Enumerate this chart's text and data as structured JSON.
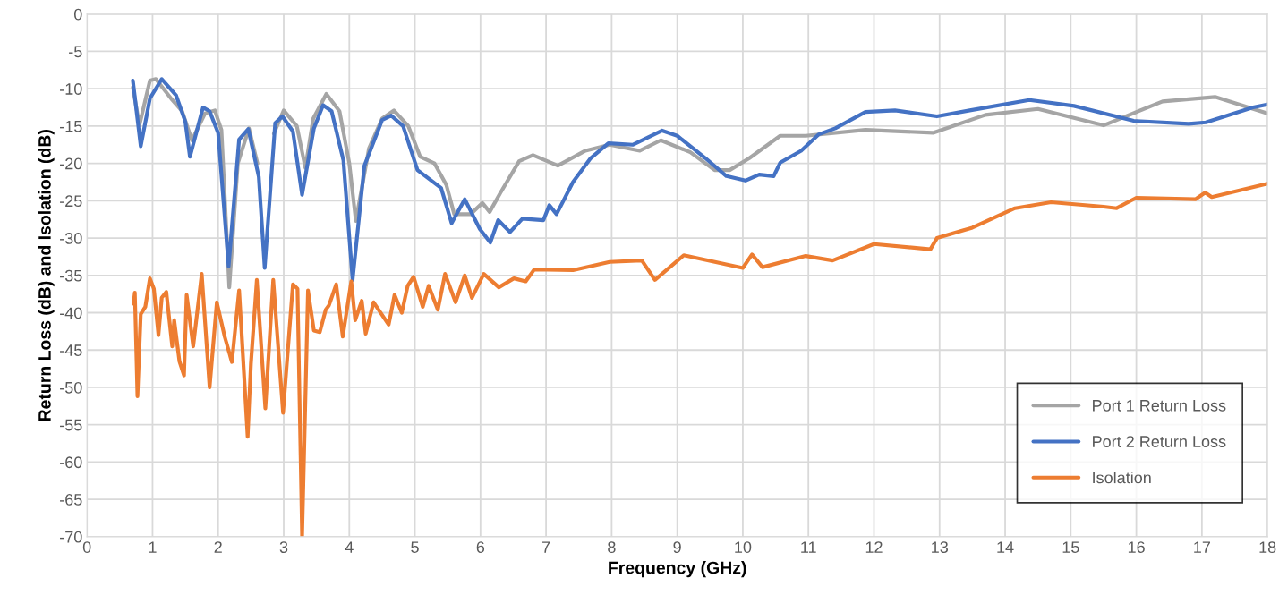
{
  "chart_data": {
    "type": "line",
    "xlabel": "Frequency (GHz)",
    "ylabel": "Return Loss (dB) and Isolation (dB)",
    "xlim": [
      0,
      18
    ],
    "xticks": [
      0,
      1,
      2,
      3,
      4,
      5,
      6,
      7,
      8,
      9,
      10,
      11,
      12,
      13,
      14,
      15,
      16,
      17,
      18
    ],
    "ylim": [
      -70,
      0
    ],
    "yticks": [
      -70,
      -65,
      -60,
      -55,
      -50,
      -45,
      -40,
      -35,
      -30,
      -25,
      -20,
      -15,
      -10,
      -5,
      0
    ],
    "grid": true,
    "legend": "bottom right",
    "line_style": "solid",
    "marker": "none",
    "series": [
      {
        "name": "Port 1 Return Loss",
        "color": "#a5a5a5",
        "x": [
          0.7,
          0.8,
          0.96,
          1.05,
          1.3,
          1.45,
          1.6,
          1.8,
          1.95,
          2.05,
          2.17,
          2.3,
          2.47,
          2.6,
          2.71,
          2.85,
          3.0,
          3.2,
          3.33,
          3.45,
          3.65,
          3.85,
          4.0,
          4.1,
          4.3,
          4.5,
          4.68,
          4.9,
          5.08,
          5.3,
          5.48,
          5.6,
          5.85,
          6.03,
          6.14,
          6.3,
          6.59,
          6.8,
          7.18,
          7.6,
          7.97,
          8.43,
          8.75,
          9.2,
          9.57,
          9.8,
          10.1,
          10.57,
          10.96,
          11.87,
          12.9,
          13.7,
          14.5,
          15.5,
          16.4,
          17.2,
          18.0
        ],
        "values": [
          -9.8,
          -14.9,
          -8.9,
          -8.7,
          -11.5,
          -13,
          -16.9,
          -13.3,
          -12.9,
          -15.5,
          -36.6,
          -20,
          -15.3,
          -20,
          null,
          -16,
          -12.9,
          -15,
          -20.6,
          -14,
          -10.7,
          -13,
          -20,
          -27.7,
          -18,
          -14,
          -12.9,
          -15,
          -19.1,
          -20,
          -22.9,
          -26.8,
          -26.8,
          -25.3,
          -26.5,
          -24,
          -19.7,
          -18.9,
          -20.3,
          -18.3,
          -17.5,
          -18.3,
          -16.9,
          -18.5,
          -20.9,
          -20.9,
          -19.3,
          -16.3,
          -16.3,
          -15.5,
          -15.9,
          -13.5,
          -12.7,
          -14.9,
          -11.7,
          -11.1,
          -13.3
        ]
      },
      {
        "name": "Port 2 Return Loss",
        "color": "#4472c4",
        "x": [
          0.7,
          0.82,
          0.96,
          1.14,
          1.36,
          1.5,
          1.57,
          1.77,
          1.87,
          2.0,
          2.16,
          2.32,
          2.46,
          2.62,
          2.71,
          2.87,
          2.98,
          3.14,
          3.28,
          3.46,
          3.6,
          3.73,
          3.91,
          4.05,
          4.23,
          4.5,
          4.64,
          4.82,
          5.04,
          5.4,
          5.56,
          5.76,
          5.99,
          6.15,
          6.27,
          6.45,
          6.64,
          6.96,
          7.05,
          7.16,
          7.41,
          7.68,
          7.95,
          8.32,
          8.77,
          9.0,
          9.2,
          9.43,
          9.75,
          10.04,
          10.25,
          10.47,
          10.57,
          10.89,
          11.16,
          11.41,
          11.87,
          12.32,
          12.96,
          13.46,
          14.37,
          15.05,
          15.96,
          16.8,
          17.06,
          17.78,
          18.0
        ],
        "values": [
          -8.9,
          -17.7,
          -11.3,
          -8.7,
          -10.9,
          -14.4,
          -19.1,
          -12.5,
          -13,
          -15.9,
          -33.8,
          -16.8,
          -15.4,
          -21.8,
          -34,
          -14.6,
          -13.7,
          -15.7,
          -24.2,
          -15.3,
          -12.2,
          -13,
          -19.6,
          -35.6,
          -20.3,
          -14.2,
          -13.6,
          -15,
          -20.9,
          -23.3,
          -28,
          -24.8,
          -28.8,
          -30.6,
          -27.6,
          -29.2,
          -27.4,
          -27.6,
          -25.6,
          -26.8,
          -22.5,
          -19.3,
          -17.3,
          -17.5,
          -15.6,
          -16.3,
          -17.7,
          -19.3,
          -21.7,
          -22.3,
          -21.5,
          -21.7,
          -19.9,
          -18.3,
          -16.1,
          -15.3,
          -13.1,
          -12.9,
          -13.7,
          -12.9,
          -11.5,
          -12.3,
          -14.3,
          -14.7,
          -14.5,
          -12.5,
          -12.1
        ]
      },
      {
        "name": "Isolation",
        "color": "#ed7d31",
        "x": [
          0.71,
          0.73,
          0.77,
          0.82,
          0.89,
          0.96,
          1.02,
          1.09,
          1.14,
          1.21,
          1.3,
          1.33,
          1.41,
          1.48,
          1.52,
          1.62,
          1.75,
          1.87,
          1.98,
          2.1,
          2.21,
          2.32,
          2.45,
          2.5,
          2.59,
          2.72,
          2.84,
          2.99,
          3.14,
          3.21,
          3.28,
          3.37,
          3.46,
          3.55,
          3.64,
          3.69,
          3.8,
          3.9,
          4.03,
          4.09,
          4.19,
          4.25,
          4.37,
          4.6,
          4.69,
          4.8,
          4.89,
          4.98,
          5.12,
          5.21,
          5.35,
          5.46,
          5.62,
          5.76,
          5.87,
          6.05,
          6.28,
          6.51,
          6.69,
          6.82,
          7.41,
          7.97,
          8.46,
          8.66,
          9.1,
          10.0,
          10.14,
          10.3,
          10.96,
          11.37,
          12.0,
          12.86,
          12.96,
          13.5,
          14.15,
          14.7,
          15.5,
          15.7,
          16.0,
          16.9,
          17.05,
          17.15,
          18.0
        ],
        "values": [
          -38.8,
          -37.3,
          -51.2,
          -40.2,
          -39.2,
          -35.4,
          -36.8,
          -43,
          -38,
          -37.2,
          -44.5,
          -41,
          -46.5,
          -48.4,
          -37.6,
          -44.5,
          -34.8,
          -50,
          -38.6,
          -43.2,
          -46.6,
          -37,
          -56.6,
          -46.8,
          -35.6,
          -52.8,
          -35.6,
          -53.4,
          -36.2,
          -36.8,
          -70,
          -37,
          -42.4,
          -42.6,
          -39.6,
          -39,
          -36.2,
          -43.2,
          -35.8,
          -41,
          -38.4,
          -42.8,
          -38.6,
          -41.6,
          -37.6,
          -40,
          -36.4,
          -35.2,
          -39.2,
          -36.4,
          -39.6,
          -34.8,
          -38.6,
          -35,
          -38,
          -34.8,
          -36.6,
          -35.4,
          -35.8,
          -34.2,
          -34.3,
          -33.2,
          -33,
          -35.6,
          -32.3,
          -34,
          -32.2,
          -33.9,
          -32.4,
          -33,
          -30.8,
          -31.5,
          -30,
          -28.6,
          -26,
          -25.2,
          -25.8,
          -26,
          -24.6,
          -24.8,
          -23.9,
          -24.5,
          -22.7
        ]
      }
    ]
  }
}
